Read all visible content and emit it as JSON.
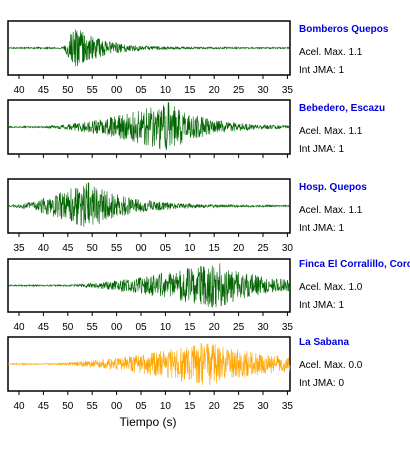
{
  "xlabel": "Tiempo (s)",
  "acel_prefix": "Acel. Max.",
  "int_prefix": "Int JMA:",
  "panels": [
    {
      "station": "Bomberos Quepos",
      "acel": "1.1",
      "int": "1",
      "color": "#006400",
      "ticks": [
        "40",
        "45",
        "50",
        "55",
        "00",
        "05",
        "10",
        "15",
        "20",
        "25",
        "30",
        "35"
      ]
    },
    {
      "station": "Bebedero, Escazu",
      "acel": "1.1",
      "int": "1",
      "color": "#006400",
      "ticks": []
    },
    {
      "station": "Hosp. Quepos",
      "acel": "1.1",
      "int": "1",
      "color": "#006400",
      "ticks": [
        "35",
        "40",
        "45",
        "50",
        "55",
        "00",
        "05",
        "10",
        "15",
        "20",
        "25",
        "30"
      ]
    },
    {
      "station": "Finca El Corralillo, Coro",
      "acel": "1.0",
      "int": "1",
      "color": "#006400",
      "ticks": [
        "40",
        "45",
        "50",
        "55",
        "00",
        "05",
        "10",
        "15",
        "20",
        "25",
        "30",
        "35"
      ]
    },
    {
      "station": "La Sabana",
      "acel": "0.0",
      "int": "0",
      "color": "#ffa500",
      "ticks": [
        "40",
        "45",
        "50",
        "55",
        "00",
        "05",
        "10",
        "15",
        "20",
        "25",
        "30",
        "35"
      ]
    }
  ],
  "chart_data": {
    "type": "line",
    "xlabel": "Tiempo (s)",
    "series": [
      {
        "name": "Bomberos Quepos",
        "onset": 7.0,
        "peak": 8.0,
        "decay": 3.5,
        "amplitude": 1.1
      },
      {
        "name": "Bebedero, Escazu",
        "onset": 4.0,
        "peak": 20.5,
        "decay": 4.5,
        "amplitude": 1.1
      },
      {
        "name": "Hosp. Quepos",
        "onset": 0.0,
        "peak": 10.0,
        "decay": 5.0,
        "amplitude": 1.1
      },
      {
        "name": "Finca El Corralillo, Coro",
        "onset": 7.0,
        "peak": 26.5,
        "decay": 6.0,
        "amplitude": 1.0
      },
      {
        "name": "La Sabana",
        "onset": 5.0,
        "peak": 25.5,
        "decay": 9.0,
        "amplitude": 0.0
      }
    ]
  }
}
